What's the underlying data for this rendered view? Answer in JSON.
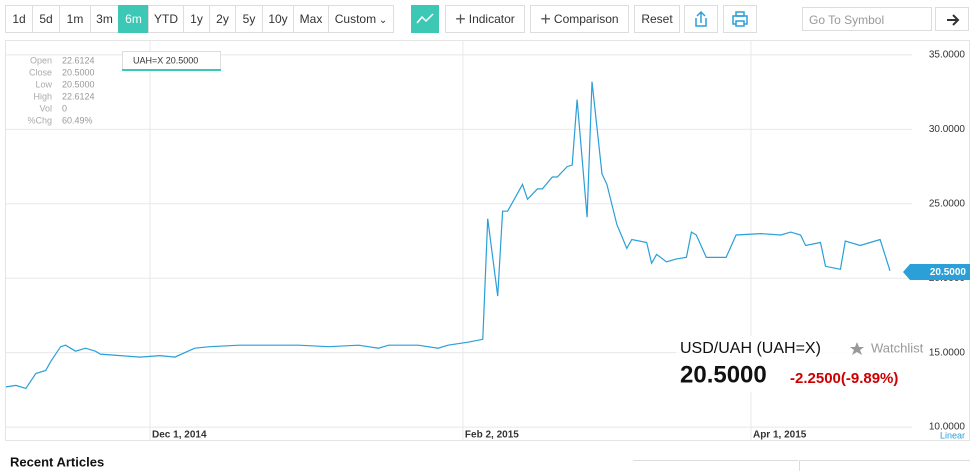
{
  "toolbar": {
    "ranges": [
      "1d",
      "5d",
      "1m",
      "3m",
      "6m",
      "YTD",
      "1y",
      "2y",
      "5y",
      "10y",
      "Max",
      "Custom"
    ],
    "indicator": "Indicator",
    "comparison": "Comparison",
    "reset": "Reset",
    "search_placeholder": "Go To Symbol"
  },
  "chart_data": {
    "type": "line",
    "stats": [
      {
        "label": "Open",
        "value": "22.6124"
      },
      {
        "label": "Close",
        "value": "20.5000"
      },
      {
        "label": "Low",
        "value": "20.5000"
      },
      {
        "label": "High",
        "value": "22.6124"
      },
      {
        "label": "Vol",
        "value": "0"
      },
      {
        "label": "%Chg",
        "value": "60.49%"
      }
    ],
    "tooltip": "UAH=X 20.5000",
    "last_value_label": "20.5000",
    "scale_label": "Linear",
    "x": [
      "2014-11-02",
      "2014-11-04",
      "2014-11-06",
      "2014-11-08",
      "2014-11-10",
      "2014-11-11",
      "2014-11-13",
      "2014-11-14",
      "2014-11-16",
      "2014-11-18",
      "2014-11-20",
      "2014-11-21",
      "2014-11-25",
      "2014-11-29",
      "2014-12-03",
      "2014-12-06",
      "2014-12-10",
      "2014-12-13",
      "2014-12-19",
      "2014-12-25",
      "2014-12-31",
      "2015-01-06",
      "2015-01-12",
      "2015-01-16",
      "2015-01-18",
      "2015-01-24",
      "2015-01-28",
      "2015-01-30",
      "2015-02-03",
      "2015-02-06",
      "2015-02-07",
      "2015-02-09",
      "2015-02-10",
      "2015-02-11",
      "2015-02-13",
      "2015-02-14",
      "2015-02-15",
      "2015-02-17",
      "2015-02-18",
      "2015-02-20",
      "2015-02-21",
      "2015-02-23",
      "2015-02-24",
      "2015-02-25",
      "2015-02-27",
      "2015-02-28",
      "2015-03-02",
      "2015-03-03",
      "2015-03-05",
      "2015-03-07",
      "2015-03-08",
      "2015-03-11",
      "2015-03-12",
      "2015-03-13",
      "2015-03-15",
      "2015-03-17",
      "2015-03-19",
      "2015-03-20",
      "2015-03-21",
      "2015-03-23",
      "2015-03-27",
      "2015-03-29",
      "2015-04-03",
      "2015-04-07",
      "2015-04-09",
      "2015-04-11",
      "2015-04-12",
      "2015-04-15",
      "2015-04-16",
      "2015-04-19",
      "2015-04-20",
      "2015-04-23",
      "2015-04-25",
      "2015-04-27",
      "2015-04-29"
    ],
    "series": [
      {
        "name": "UAH=X",
        "color": "#2a9fd8",
        "values": [
          12.7,
          12.8,
          12.6,
          13.6,
          13.8,
          14.4,
          15.4,
          15.5,
          15.1,
          15.3,
          15.1,
          14.9,
          14.8,
          14.7,
          14.8,
          14.7,
          15.3,
          15.4,
          15.5,
          15.5,
          15.5,
          15.4,
          15.5,
          15.3,
          15.5,
          15.5,
          15.3,
          15.5,
          15.7,
          15.9,
          24.0,
          18.8,
          24.5,
          24.5,
          25.7,
          26.3,
          25.3,
          26.0,
          26.0,
          26.8,
          26.8,
          27.5,
          27.6,
          32.0,
          24.1,
          33.2,
          27.0,
          26.3,
          23.6,
          22.0,
          22.6,
          22.4,
          21.0,
          21.6,
          21.1,
          21.3,
          21.4,
          23.1,
          22.9,
          21.4,
          21.4,
          22.9,
          23.0,
          22.9,
          23.1,
          22.9,
          22.2,
          22.4,
          20.8,
          20.6,
          22.5,
          22.2,
          22.4,
          22.6,
          20.5
        ]
      }
    ],
    "xlim": [
      "2014-11-02",
      "2015-04-30"
    ],
    "xticks": [
      {
        "value": "2014-12-01",
        "label": "Dec 1, 2014"
      },
      {
        "value": "2015-02-02",
        "label": "Feb 2, 2015"
      },
      {
        "value": "2015-04-01",
        "label": "Apr 1, 2015"
      }
    ],
    "ylim": [
      9.2,
      35.8
    ],
    "yticks": [
      {
        "value": 10,
        "label": "10.0000"
      },
      {
        "value": 15,
        "label": "15.0000"
      },
      {
        "value": 20,
        "label": "20.0000"
      },
      {
        "value": 25,
        "label": "25.0000"
      },
      {
        "value": 30,
        "label": "30.0000"
      },
      {
        "value": 35,
        "label": "35.0000"
      }
    ],
    "grid": true
  },
  "quote": {
    "name": "USD/UAH (UAH=X)",
    "watchlist": "Watchlist",
    "price": "20.5000",
    "change": "-2.2500(-9.89%)"
  },
  "articles": {
    "title": "Recent Articles"
  }
}
